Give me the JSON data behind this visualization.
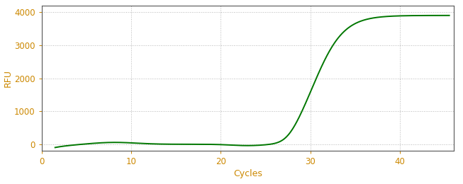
{
  "title": "",
  "xlabel": "Cycles",
  "ylabel": "RFU",
  "xlim": [
    0,
    46
  ],
  "ylim": [
    -200,
    4200
  ],
  "yticks": [
    0,
    1000,
    2000,
    3000,
    4000
  ],
  "xticks": [
    0,
    10,
    20,
    30,
    40
  ],
  "line_color": "#007700",
  "line_width": 1.4,
  "bg_color": "#ffffff",
  "plot_bg_color": "#ffffff",
  "grid_color": "#888888",
  "tick_label_color": "#cc8800",
  "axis_label_color": "#cc8800",
  "spine_color": "#555555",
  "sigmoid_L": 3900,
  "sigmoid_k": 0.6,
  "sigmoid_x0": 30.5,
  "x_start": 1.5,
  "x_end": 45.5
}
